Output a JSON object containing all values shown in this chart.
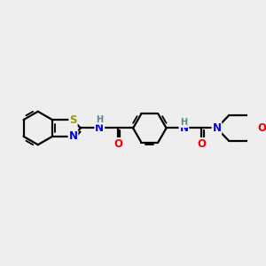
{
  "background_color": "#eeeeee",
  "bond_color": "#000000",
  "atom_colors": {
    "S": "#999900",
    "N": "#0000ee",
    "O": "#ee0000",
    "H": "#558888",
    "C": "#000000"
  },
  "bond_width": 1.6,
  "font_size_atom": 8.5,
  "font_size_h": 7.0
}
